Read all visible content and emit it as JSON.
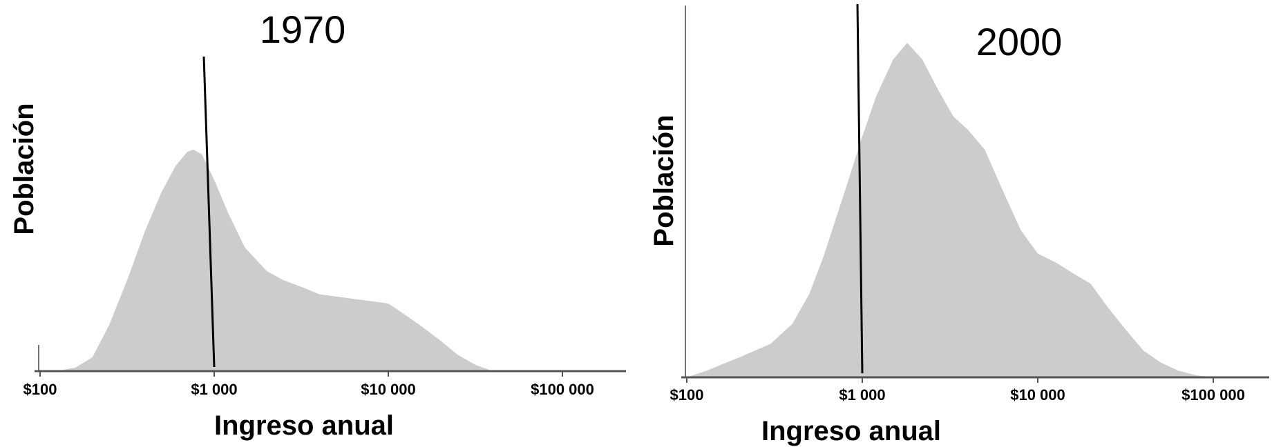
{
  "chart_data": [
    {
      "type": "area",
      "title": "1970",
      "xlabel": "Ingreso anual",
      "ylabel": "Población",
      "x_scale": "log",
      "xlim": [
        100,
        300000
      ],
      "ylim": [
        0,
        1
      ],
      "x_ticks": [
        100,
        1000,
        10000,
        100000
      ],
      "x_tick_labels": [
        "$100",
        "$1 000",
        "$10 000",
        "$100 000"
      ],
      "fill_color": "#cccccc",
      "reference_line": {
        "x": 1000,
        "label": ""
      },
      "series": [
        {
          "x": [
            100,
            130,
            160,
            200,
            250,
            320,
            400,
            500,
            600,
            700,
            760,
            850,
            1000,
            1200,
            1500,
            2000,
            2500,
            3200,
            4000,
            5000,
            6300,
            8000,
            10000,
            12000,
            15000,
            20000,
            25000,
            32000,
            40000
          ],
          "y": [
            0,
            0.003,
            0.015,
            0.06,
            0.2,
            0.4,
            0.6,
            0.77,
            0.88,
            0.94,
            0.95,
            0.93,
            0.82,
            0.68,
            0.53,
            0.43,
            0.39,
            0.36,
            0.33,
            0.32,
            0.31,
            0.3,
            0.29,
            0.25,
            0.2,
            0.13,
            0.07,
            0.025,
            0
          ]
        }
      ]
    },
    {
      "type": "area",
      "title": "2000",
      "xlabel": "Ingreso anual",
      "ylabel": "Población",
      "x_scale": "log",
      "xlim": [
        100,
        300000
      ],
      "ylim": [
        0,
        1
      ],
      "x_ticks": [
        100,
        1000,
        10000,
        100000
      ],
      "x_tick_labels": [
        "$100",
        "$1 000",
        "$10 000",
        "$100 000"
      ],
      "fill_color": "#cccccc",
      "reference_line": {
        "x": 1000,
        "label": ""
      },
      "series": [
        {
          "x": [
            100,
            130,
            200,
            300,
            400,
            500,
            600,
            800,
            1000,
            1200,
            1500,
            1800,
            2200,
            2700,
            3300,
            4000,
            5000,
            6300,
            8000,
            10000,
            13000,
            16000,
            20000,
            25000,
            32000,
            40000,
            50000,
            63000,
            80000,
            100000
          ],
          "y": [
            0,
            0.02,
            0.06,
            0.1,
            0.16,
            0.25,
            0.36,
            0.56,
            0.72,
            0.84,
            0.95,
            1.0,
            0.95,
            0.86,
            0.78,
            0.74,
            0.68,
            0.56,
            0.44,
            0.37,
            0.34,
            0.31,
            0.28,
            0.21,
            0.14,
            0.08,
            0.045,
            0.02,
            0.006,
            0
          ]
        }
      ]
    }
  ]
}
